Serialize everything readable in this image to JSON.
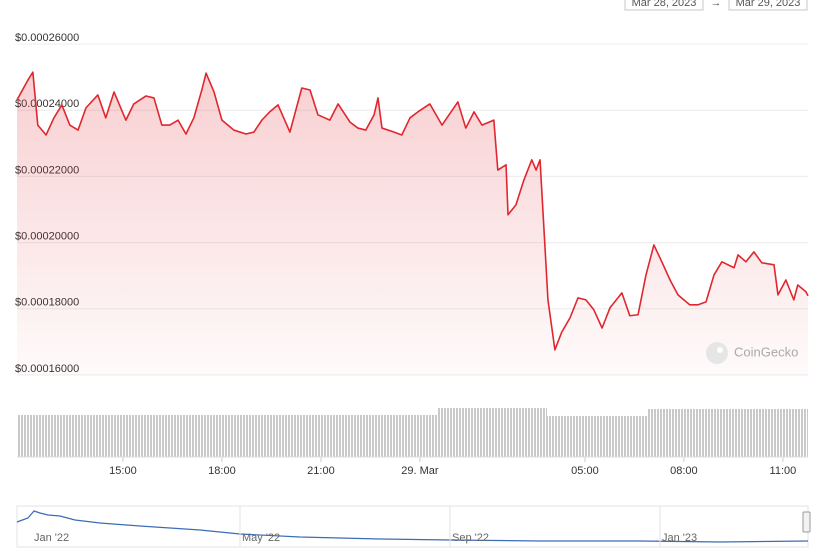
{
  "range": {
    "from": "Mar 28, 2023",
    "separator": "→",
    "to": "Mar 29, 2023"
  },
  "watermark": "CoinGecko",
  "navigator": {
    "labels": [
      "Jan '22",
      "May '22",
      "Sep '22",
      "Jan '23"
    ]
  },
  "chart_data": {
    "type": "line",
    "color": "#e0272f",
    "grid": true,
    "xlim": [
      11.79,
      35.76
    ],
    "xticks": [
      {
        "value": 15,
        "label": "15:00"
      },
      {
        "value": 18,
        "label": "18:00"
      },
      {
        "value": 21,
        "label": "21:00"
      },
      {
        "value": 24,
        "label": "29. Mar"
      },
      {
        "value": 29,
        "label": "05:00"
      },
      {
        "value": 32,
        "label": "08:00"
      },
      {
        "value": 35,
        "label": "11:00"
      }
    ],
    "ylim": [
      0.00016,
      0.00026
    ],
    "yticks": [
      {
        "value": 0.00016,
        "label": "$0.00016000"
      },
      {
        "value": 0.00018,
        "label": "$0.00018000"
      },
      {
        "value": 0.0002,
        "label": "$0.00020000"
      },
      {
        "value": 0.00022,
        "label": "$0.00022000"
      },
      {
        "value": 0.00024,
        "label": "$0.00024000"
      },
      {
        "value": 0.00026,
        "label": "$0.00026000"
      }
    ],
    "x": [
      11.79,
      12.12,
      12.27,
      12.42,
      12.67,
      12.91,
      13.15,
      13.39,
      13.64,
      13.88,
      14.24,
      14.48,
      14.73,
      15.09,
      15.33,
      15.7,
      15.94,
      16.18,
      16.42,
      16.67,
      16.91,
      17.15,
      17.39,
      17.52,
      17.76,
      18,
      18.36,
      18.73,
      18.97,
      19.21,
      19.45,
      19.7,
      20.06,
      20.42,
      20.67,
      20.91,
      21.27,
      21.52,
      21.88,
      22.12,
      22.36,
      22.61,
      22.73,
      22.85,
      23.21,
      23.45,
      23.7,
      23.94,
      24.3,
      24.67,
      25.15,
      25.39,
      25.64,
      25.88,
      26.24,
      26.36,
      26.61,
      26.67,
      26.91,
      27.15,
      27.39,
      27.52,
      27.64,
      27.88,
      28.09,
      28.3,
      28.55,
      28.79,
      29.03,
      29.27,
      29.52,
      29.76,
      30.12,
      30.36,
      30.61,
      30.85,
      31.09,
      31.33,
      31.58,
      31.82,
      32.18,
      32.42,
      32.67,
      32.91,
      33.15,
      33.52,
      33.64,
      33.88,
      34.12,
      34.36,
      34.73,
      34.85,
      35.09,
      35.33,
      35.45,
      35.7,
      35.76
    ],
    "values": [
      0.0002431,
      0.0002491,
      0.0002515,
      0.0002355,
      0.0002325,
      0.0002377,
      0.0002416,
      0.0002355,
      0.000234,
      0.0002407,
      0.0002446,
      0.0002377,
      0.0002455,
      0.000237,
      0.0002419,
      0.0002443,
      0.0002437,
      0.0002355,
      0.0002355,
      0.000237,
      0.0002328,
      0.0002377,
      0.0002461,
      0.0002512,
      0.0002455,
      0.000237,
      0.000234,
      0.0002328,
      0.0002334,
      0.000237,
      0.0002395,
      0.0002416,
      0.0002334,
      0.0002467,
      0.0002461,
      0.0002386,
      0.000237,
      0.0002419,
      0.0002364,
      0.0002346,
      0.000234,
      0.0002386,
      0.0002437,
      0.0002346,
      0.0002334,
      0.0002325,
      0.0002377,
      0.0002395,
      0.0002419,
      0.0002355,
      0.0002425,
      0.0002346,
      0.0002395,
      0.0002355,
      0.000237,
      0.0002219,
      0.0002235,
      0.0002084,
      0.0002114,
      0.0002189,
      0.000225,
      0.0002219,
      0.000225,
      0.0001827,
      0.0001676,
      0.000173,
      0.0001773,
      0.0001833,
      0.0001827,
      0.0001797,
      0.0001742,
      0.0001803,
      0.0001848,
      0.0001779,
      0.0001782,
      0.0001902,
      0.0001993,
      0.0001942,
      0.0001887,
      0.0001842,
      0.0001812,
      0.0001812,
      0.0001821,
      0.0001902,
      0.0001942,
      0.0001924,
      0.0001963,
      0.0001942,
      0.0001972,
      0.0001939,
      0.0001933,
      0.0001842,
      0.0001887,
      0.0001827,
      0.0001872,
      0.0001851,
      0.0001839
    ]
  }
}
